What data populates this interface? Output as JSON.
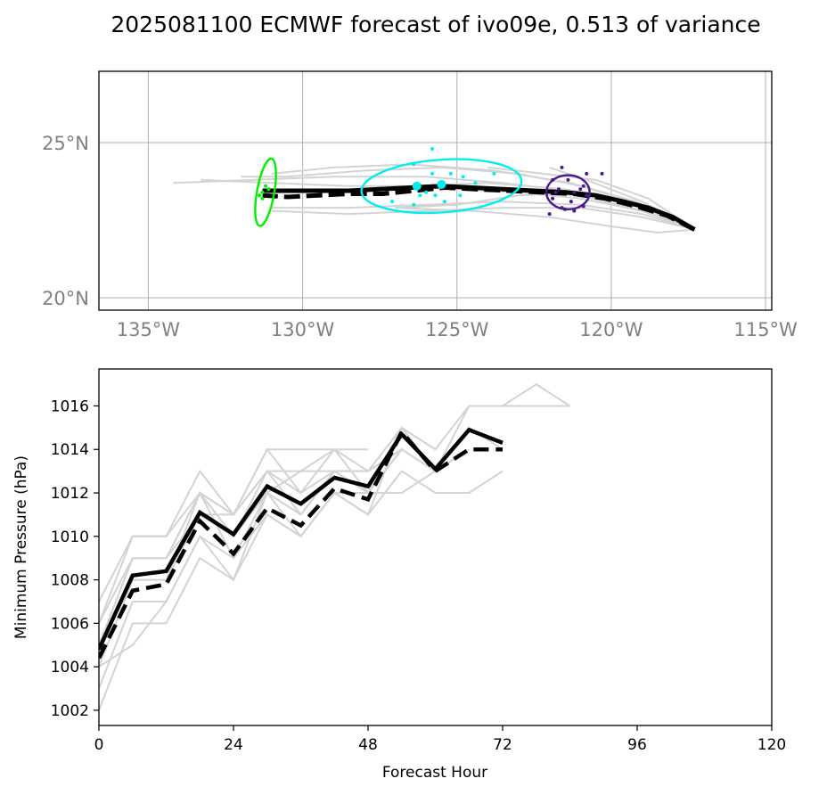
{
  "title": "2025081100 ECMWF forecast of ivo09e, 0.513 of variance",
  "colors": {
    "ensemble": "#d3d3d3",
    "mean": "#000000",
    "grid": "#b0b0b0",
    "map_tick": "#808080",
    "t0": "#00ee00",
    "t48": "#00eeee",
    "t96": "#4b1a8a"
  },
  "chart_data": [
    {
      "type": "line",
      "name": "track-map",
      "lon_ticks": [
        -135,
        -130,
        -125,
        -120,
        -115
      ],
      "lon_tick_labels": [
        "135°W",
        "130°W",
        "125°W",
        "120°W",
        "115°W"
      ],
      "lat_ticks": [
        20,
        25
      ],
      "lat_tick_labels": [
        "20°N",
        "25°N"
      ],
      "xlim": [
        -136.6,
        -114.8
      ],
      "ylim": [
        19.6,
        27.3
      ],
      "grid": true,
      "mean_track": [
        [
          -117.3,
          22.2
        ],
        [
          -118.0,
          22.6
        ],
        [
          -118.8,
          22.9
        ],
        [
          -119.6,
          23.1
        ],
        [
          -120.5,
          23.3
        ],
        [
          -121.5,
          23.4
        ],
        [
          -122.5,
          23.45
        ],
        [
          -123.5,
          23.5
        ],
        [
          -124.5,
          23.55
        ],
        [
          -125.5,
          23.6
        ],
        [
          -126.5,
          23.55
        ],
        [
          -127.5,
          23.5
        ],
        [
          -128.5,
          23.45
        ],
        [
          -129.5,
          23.45
        ],
        [
          -130.5,
          23.45
        ],
        [
          -131.3,
          23.45
        ]
      ],
      "mean_track_dashed": [
        [
          -117.3,
          22.2
        ],
        [
          -118.2,
          22.65
        ],
        [
          -119.2,
          22.95
        ],
        [
          -120.2,
          23.2
        ],
        [
          -121.2,
          23.35
        ],
        [
          -122.3,
          23.4
        ],
        [
          -123.3,
          23.45
        ],
        [
          -124.4,
          23.5
        ],
        [
          -125.4,
          23.55
        ],
        [
          -126.4,
          23.45
        ],
        [
          -127.4,
          23.35
        ],
        [
          -128.5,
          23.35
        ],
        [
          -129.5,
          23.3
        ],
        [
          -130.5,
          23.25
        ],
        [
          -131.3,
          23.3
        ]
      ],
      "ensemble_tracks": [
        [
          [
            -117.3,
            22.2
          ],
          [
            -119.0,
            22.9
          ],
          [
            -121.0,
            23.4
          ],
          [
            -123.5,
            23.7
          ],
          [
            -126.0,
            23.9
          ],
          [
            -129.0,
            23.9
          ],
          [
            -131.5,
            23.8
          ],
          [
            -134.2,
            23.7
          ]
        ],
        [
          [
            -117.3,
            22.2
          ],
          [
            -119.0,
            22.8
          ],
          [
            -121.0,
            23.3
          ],
          [
            -123.5,
            23.5
          ],
          [
            -126.0,
            23.6
          ],
          [
            -128.5,
            23.6
          ],
          [
            -131.0,
            23.7
          ],
          [
            -133.3,
            23.8
          ]
        ],
        [
          [
            -117.3,
            22.2
          ],
          [
            -119.0,
            23.0
          ],
          [
            -121.0,
            23.6
          ],
          [
            -123.0,
            24.0
          ],
          [
            -125.5,
            24.2
          ],
          [
            -128.0,
            24.1
          ],
          [
            -130.5,
            23.9
          ],
          [
            -132.0,
            23.9
          ]
        ],
        [
          [
            -117.3,
            22.2
          ],
          [
            -119.2,
            23.1
          ],
          [
            -121.3,
            23.7
          ],
          [
            -123.8,
            24.1
          ],
          [
            -126.5,
            24.3
          ],
          [
            -129.0,
            24.2
          ],
          [
            -131.0,
            24.0
          ]
        ],
        [
          [
            -117.3,
            22.2
          ],
          [
            -119.0,
            22.7
          ],
          [
            -121.0,
            23.0
          ],
          [
            -123.5,
            23.1
          ],
          [
            -126.0,
            23.0
          ],
          [
            -128.5,
            22.9
          ],
          [
            -131.0,
            22.9
          ]
        ],
        [
          [
            -117.3,
            22.2
          ],
          [
            -119.0,
            22.6
          ],
          [
            -121.0,
            22.9
          ],
          [
            -123.5,
            22.9
          ],
          [
            -126.0,
            22.8
          ],
          [
            -128.5,
            22.7
          ],
          [
            -131.0,
            22.8
          ]
        ],
        [
          [
            -117.3,
            22.2
          ],
          [
            -118.5,
            22.1
          ],
          [
            -120.0,
            22.3
          ],
          [
            -122.0,
            22.6
          ],
          [
            -124.5,
            22.8
          ],
          [
            -127.0,
            22.9
          ]
        ],
        [
          [
            -117.3,
            22.2
          ],
          [
            -119.0,
            22.8
          ],
          [
            -121.0,
            23.2
          ],
          [
            -123.0,
            23.4
          ],
          [
            -125.0,
            23.5
          ],
          [
            -127.5,
            23.6
          ]
        ],
        [
          [
            -117.3,
            22.2
          ],
          [
            -118.8,
            23.2
          ],
          [
            -120.5,
            23.8
          ],
          [
            -122.2,
            24.0
          ],
          [
            -124.0,
            24.2
          ]
        ],
        [
          [
            -117.3,
            22.2
          ],
          [
            -119.0,
            22.9
          ],
          [
            -121.0,
            23.4
          ],
          [
            -123.0,
            23.3
          ],
          [
            -125.0,
            23.0
          ],
          [
            -127.0,
            22.9
          ]
        ],
        [
          [
            -117.3,
            22.2
          ],
          [
            -119.2,
            23.0
          ],
          [
            -121.5,
            23.5
          ],
          [
            -124.0,
            23.7
          ],
          [
            -126.5,
            23.6
          ]
        ],
        [
          [
            -117.3,
            22.2
          ],
          [
            -119.0,
            23.1
          ],
          [
            -120.8,
            23.8
          ],
          [
            -122.0,
            24.2
          ]
        ]
      ],
      "ellipses": [
        {
          "hour": 0,
          "color": "#00ee00",
          "lon": -131.2,
          "lat": 23.4,
          "rx_deg": 0.28,
          "ry_deg": 1.1,
          "rotate": 10
        },
        {
          "hour": 48,
          "color": "#00eeee",
          "lon": -125.5,
          "lat": 23.6,
          "rx_deg": 2.6,
          "ry_deg": 0.85,
          "rotate": -4
        },
        {
          "hour": 96,
          "color": "#4b1a8a",
          "lon": -121.4,
          "lat": 23.4,
          "rx_deg": 0.7,
          "ry_deg": 0.55,
          "rotate": 0
        }
      ],
      "points": [
        {
          "hour": 0,
          "color": "#00ee00",
          "coords": [
            [
              -131.3,
              23.4
            ],
            [
              -131.1,
              23.5
            ],
            [
              -131.4,
              23.3
            ],
            [
              -131.2,
              23.6
            ],
            [
              -131.3,
              23.2
            ]
          ]
        },
        {
          "hour": 48,
          "color": "#00eeee",
          "coords": [
            [
              -126.4,
              24.3
            ],
            [
              -125.8,
              24.8
            ],
            [
              -125.8,
              24.0
            ],
            [
              -125.2,
              24.0
            ],
            [
              -124.8,
              23.9
            ],
            [
              -124.4,
              23.7
            ],
            [
              -123.8,
              24.0
            ],
            [
              -126.2,
              23.3
            ],
            [
              -125.7,
              23.3
            ],
            [
              -125.4,
              23.1
            ],
            [
              -124.9,
              23.3
            ],
            [
              -126.4,
              23.0
            ],
            [
              -127.1,
              23.1
            ],
            [
              -126.0,
              23.4
            ]
          ]
        },
        {
          "hour": 96,
          "color": "#4b1a8a",
          "coords": [
            [
              -121.6,
              24.2
            ],
            [
              -120.8,
              24.0
            ],
            [
              -120.3,
              24.0
            ],
            [
              -121.9,
              23.8
            ],
            [
              -121.4,
              23.8
            ],
            [
              -120.9,
              23.6
            ],
            [
              -121.7,
              23.5
            ],
            [
              -121.2,
              23.4
            ],
            [
              -120.8,
              23.3
            ],
            [
              -121.9,
              23.2
            ],
            [
              -121.3,
              23.1
            ],
            [
              -120.9,
              22.95
            ],
            [
              -121.6,
              22.9
            ],
            [
              -121.2,
              22.8
            ],
            [
              -122.0,
              22.7
            ],
            [
              -121.5,
              22.85
            ],
            [
              -121.0,
              23.5
            ],
            [
              -121.8,
              23.4
            ]
          ]
        }
      ],
      "ensemble_mean_points": [
        {
          "hour": 48,
          "color": "#00eeee",
          "coords": [
            [
              -126.3,
              23.6
            ],
            [
              -125.5,
              23.65
            ]
          ]
        }
      ]
    },
    {
      "type": "line",
      "name": "pressure",
      "xlabel": "Forecast Hour",
      "ylabel": "Minimum Pressure (hPa)",
      "xlim": [
        0,
        120
      ],
      "ylim": [
        1001.3,
        1017.7
      ],
      "x_ticks": [
        0,
        24,
        48,
        72,
        96,
        120
      ],
      "y_ticks": [
        1002,
        1004,
        1006,
        1008,
        1010,
        1012,
        1014,
        1016
      ],
      "grid": false,
      "mean": {
        "x": [
          0,
          6,
          12,
          18,
          24,
          30,
          36,
          42,
          48,
          54,
          60,
          66,
          72
        ],
        "y": [
          1004.8,
          1008.2,
          1008.4,
          1011.1,
          1010.1,
          1012.3,
          1011.5,
          1012.7,
          1012.3,
          1014.7,
          1013.1,
          1014.9,
          1014.3
        ]
      },
      "mean_dashed": {
        "x": [
          0,
          6,
          12,
          18,
          24,
          30,
          36,
          42,
          48,
          54,
          60,
          66,
          72
        ],
        "y": [
          1004.4,
          1007.5,
          1007.8,
          1010.7,
          1009.2,
          1011.3,
          1010.5,
          1012.2,
          1011.7,
          1014.8,
          1013.0,
          1014.0,
          1014.0
        ]
      },
      "ensemble": [
        {
          "x": [
            0,
            6,
            12,
            18,
            24,
            30,
            36,
            42,
            48,
            54,
            60,
            66,
            72,
            78,
            84
          ],
          "y": [
            1005,
            1009,
            1009,
            1012,
            1011,
            1013,
            1012,
            1013,
            1013,
            1015,
            1014,
            1016,
            1016,
            1017,
            1016
          ]
        },
        {
          "x": [
            0,
            6,
            12,
            18,
            24,
            30,
            36,
            42,
            48,
            54,
            60,
            66,
            72,
            78,
            84
          ],
          "y": [
            1006,
            1010,
            1010,
            1012,
            1011,
            1013,
            1013,
            1014,
            1013,
            1014,
            1013,
            1016,
            1016,
            1016,
            1016
          ]
        },
        {
          "x": [
            0,
            6,
            12,
            18,
            24,
            30,
            36,
            42,
            48,
            54,
            60,
            66,
            72
          ],
          "y": [
            1004,
            1008,
            1008,
            1011,
            1010,
            1012,
            1011,
            1013,
            1012,
            1015,
            1013,
            1015,
            1014
          ]
        },
        {
          "x": [
            0,
            6,
            12,
            18,
            24,
            30,
            36,
            42,
            48,
            54,
            60,
            66,
            72
          ],
          "y": [
            1003,
            1007,
            1007,
            1010,
            1009,
            1011,
            1010,
            1012,
            1011,
            1013,
            1012,
            1012,
            1013
          ]
        },
        {
          "x": [
            0,
            6,
            12,
            18,
            24,
            30,
            36,
            42,
            48,
            54,
            60,
            66
          ],
          "y": [
            1002,
            1006,
            1006,
            1009,
            1008,
            1011,
            1010,
            1012,
            1012,
            1012,
            1013,
            1014
          ]
        },
        {
          "x": [
            0,
            6,
            12,
            18,
            24,
            30,
            36,
            42,
            48,
            54,
            60
          ],
          "y": [
            1007,
            1010,
            1010,
            1013,
            1011,
            1014,
            1012,
            1014,
            1012,
            1014,
            1013
          ]
        },
        {
          "x": [
            0,
            6,
            12,
            18,
            24,
            30,
            36,
            42,
            48,
            54
          ],
          "y": [
            1005,
            1009,
            1009,
            1012,
            1010,
            1013,
            1011,
            1013,
            1012,
            1014
          ]
        },
        {
          "x": [
            0,
            6,
            12,
            18,
            24,
            30,
            36,
            42,
            48,
            54,
            60
          ],
          "y": [
            1004,
            1005,
            1007,
            1010,
            1008,
            1012,
            1010,
            1012,
            1011,
            1015,
            1014
          ]
        },
        {
          "x": [
            0,
            6,
            12,
            18,
            24,
            30,
            36,
            42,
            48
          ],
          "y": [
            1006,
            1009,
            1009,
            1011,
            1011,
            1014,
            1014,
            1014,
            1014
          ]
        },
        {
          "x": [
            0,
            6,
            12,
            18,
            24,
            30,
            36,
            42,
            48,
            54,
            60
          ],
          "y": [
            1005,
            1008,
            1008,
            1012,
            1009,
            1012,
            1013,
            1013,
            1013,
            1014,
            1013
          ]
        }
      ]
    }
  ]
}
